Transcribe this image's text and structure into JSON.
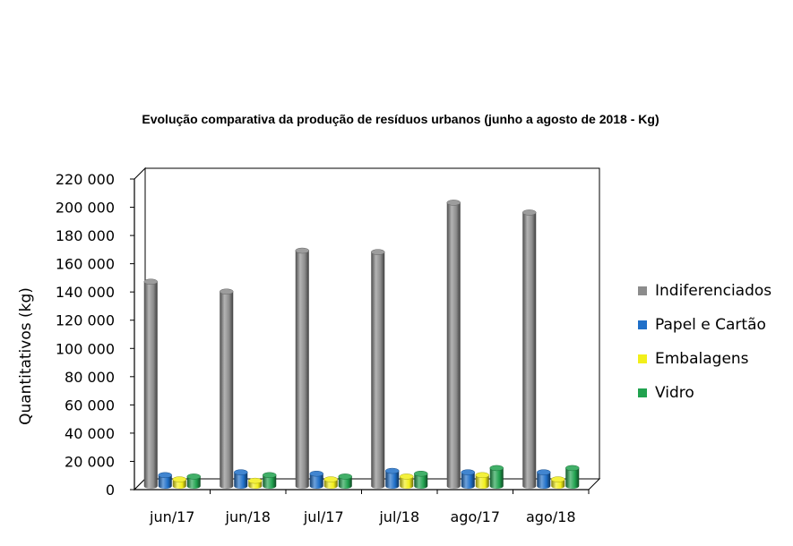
{
  "chart_data": {
    "type": "bar",
    "title": "Evolução comparativa da produção de resíduos urbanos (junho a agosto de 2018 - Kg)",
    "xlabel": "",
    "ylabel": "Quantitativos (kg)",
    "ylim": [
      0,
      220000
    ],
    "y_ticks": [
      "0",
      "20 000",
      "40 000",
      "60 000",
      "80 000",
      "100 000",
      "120 000",
      "140 000",
      "160 000",
      "180 000",
      "200 000",
      "220 000"
    ],
    "categories": [
      "jun/17",
      "jun/18",
      "jul/17",
      "jul/18",
      "ago/17",
      "ago/18"
    ],
    "series": [
      {
        "name": "Indiferenciados",
        "color": "#8c8c8c",
        "values": [
          146000,
          139000,
          168000,
          167000,
          202000,
          195000
        ]
      },
      {
        "name": "Papel e Cartão",
        "color": "#1f6fc8",
        "values": [
          9000,
          11000,
          10000,
          12000,
          11000,
          11000
        ]
      },
      {
        "name": "Embalagens",
        "color": "#f2ef1a",
        "values": [
          6000,
          5000,
          6000,
          8000,
          9000,
          6000
        ]
      },
      {
        "name": "Vidro",
        "color": "#21a24f",
        "values": [
          8000,
          9000,
          8000,
          10000,
          14000,
          14000
        ]
      }
    ],
    "grid": false,
    "legend_position": "right"
  }
}
